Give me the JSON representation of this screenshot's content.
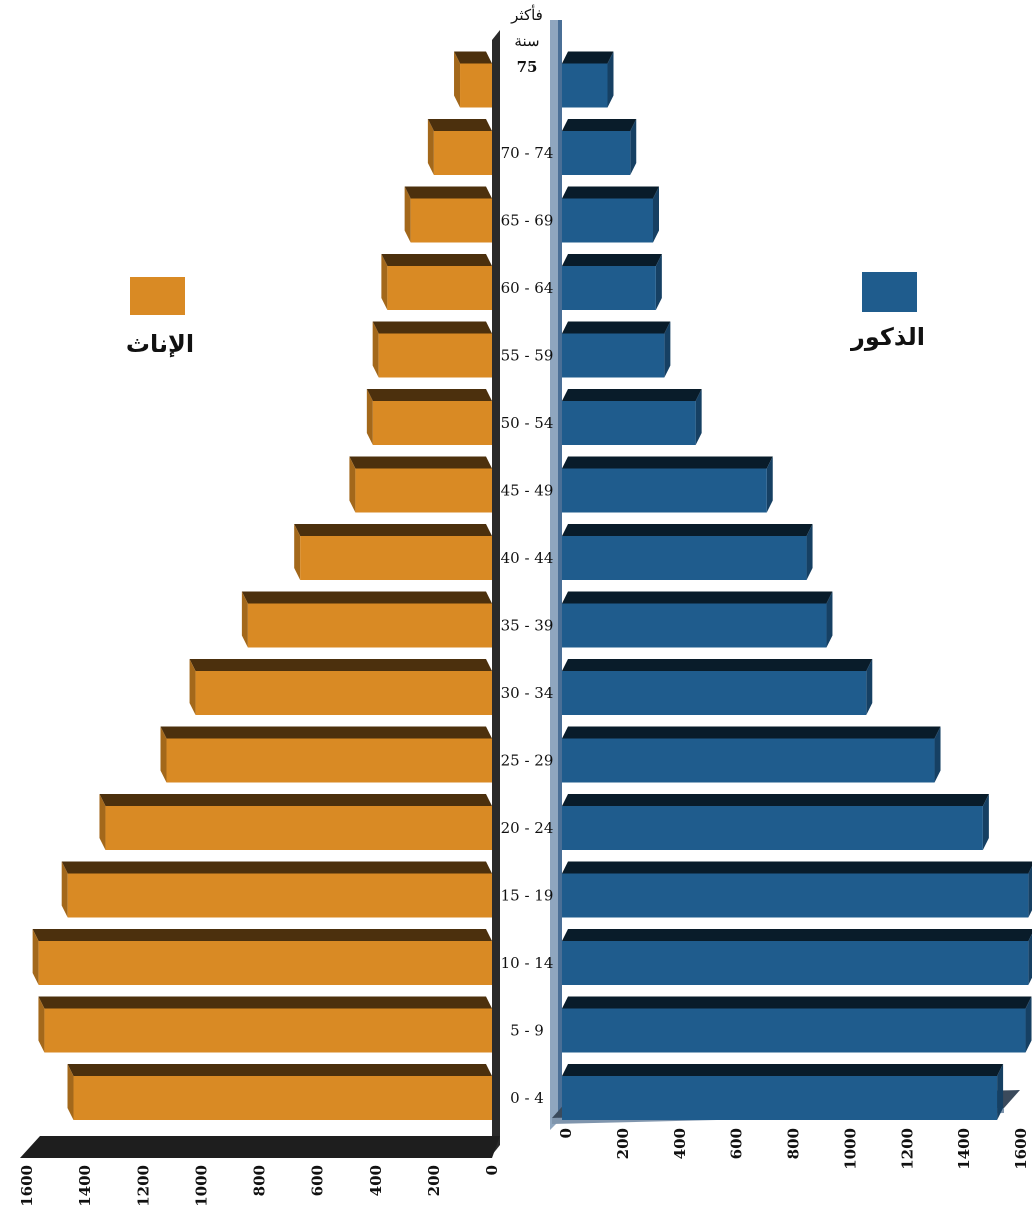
{
  "chart_data": {
    "type": "bar",
    "orientation": "horizontal-population-pyramid",
    "categories": [
      "0 - 4",
      "5 - 9",
      "10 - 14",
      "15 - 19",
      "20 - 24",
      "25 - 29",
      "30 - 34",
      "35 - 39",
      "40 - 44",
      "45 - 49",
      "50 - 54",
      "55 - 59",
      "60 - 64",
      "65 - 69",
      "70 - 74",
      "75 سنة فأكثر"
    ],
    "top_category_lines": [
      "فأكثر",
      "سنة",
      "75"
    ],
    "series": [
      {
        "name": "الإناث",
        "side": "left",
        "color": "#d98a24",
        "values": [
          1440,
          1540,
          1560,
          1460,
          1330,
          1120,
          1020,
          840,
          660,
          470,
          410,
          390,
          360,
          280,
          200,
          110
        ]
      },
      {
        "name": "الذكور",
        "side": "right",
        "color": "#1f5c8d",
        "values": [
          1530,
          1630,
          1640,
          1640,
          1480,
          1310,
          1070,
          930,
          860,
          720,
          470,
          360,
          330,
          320,
          240,
          160
        ]
      }
    ],
    "female_axis_ticks": [
      0,
      200,
      400,
      600,
      800,
      1000,
      1200,
      1400,
      1600
    ],
    "male_axis_ticks": [
      0,
      200,
      400,
      600,
      800,
      1000,
      1200,
      1400,
      1600
    ],
    "xlim": [
      0,
      1600
    ],
    "legend": [
      {
        "label": "الإناث",
        "color": "#d98a24",
        "placement": "left"
      },
      {
        "label": "الذكور",
        "color": "#1f5c8d",
        "placement": "right"
      }
    ],
    "grid": false,
    "title": "",
    "xlabel": "",
    "ylabel": ""
  }
}
